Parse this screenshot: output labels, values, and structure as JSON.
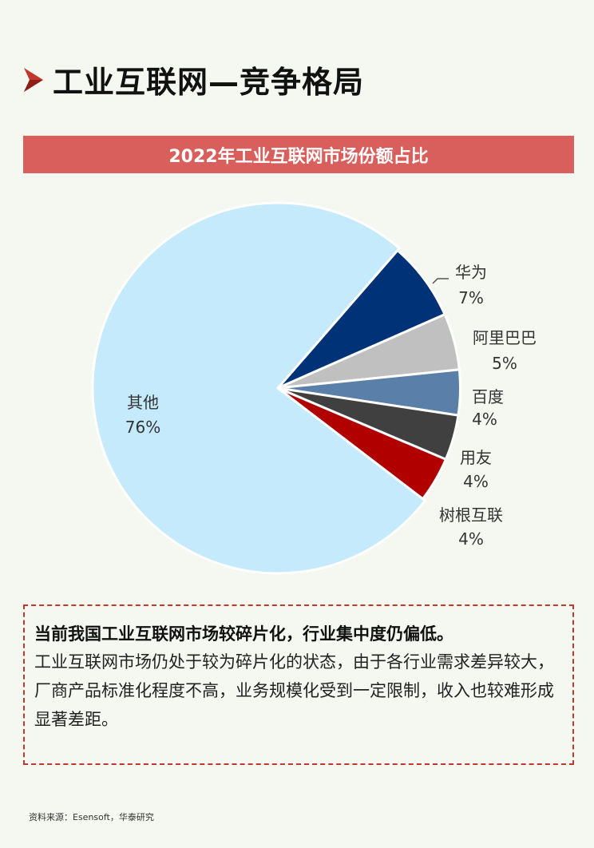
{
  "page_title": "工业互联网—竞争格局",
  "chart_banner": "2022年工业互联网市场份额占比",
  "chart_data": {
    "type": "pie",
    "title": "2022年工业互联网市场份额占比",
    "slices": [
      {
        "name": "华为",
        "value": 7,
        "label": "7%",
        "color": "#003278"
      },
      {
        "name": "阿里巴巴",
        "value": 5,
        "label": "5%",
        "color": "#c0c0c0"
      },
      {
        "name": "百度",
        "value": 4,
        "label": "4%",
        "color": "#5a7fa8"
      },
      {
        "name": "用友",
        "value": 4,
        "label": "4%",
        "color": "#404040"
      },
      {
        "name": "树根互联",
        "value": 4,
        "label": "4%",
        "color": "#b00000"
      },
      {
        "name": "其他",
        "value": 76,
        "label": "76%",
        "color": "#c5eafb"
      }
    ]
  },
  "summary": {
    "heading": "当前我国工业互联网市场较碎片化，行业集中度仍偏低。",
    "body": "工业互联网市场仍处于较为碎片化的状态，由于各行业需求差异较大，厂商产品标准化程度不高，业务规模化受到一定限制，收入也较难形成显著差距。"
  },
  "source": "资料来源：Esensoft，华泰研究",
  "colors": {
    "accent": "#c0392b",
    "banner": "#d95f5c"
  },
  "icons": {
    "title_marker": "arrow-right-icon"
  }
}
